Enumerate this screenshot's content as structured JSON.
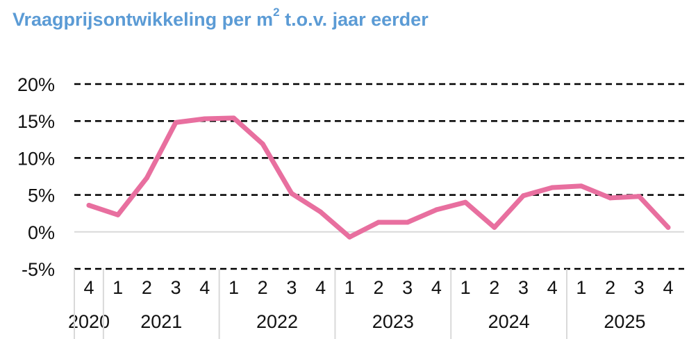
{
  "title": {
    "main": "Vraagprijsontwikkeling per m",
    "superscript": "2",
    "suffix": " t.o.v. jaar eerder"
  },
  "colors": {
    "title": "#5b9bd5",
    "line": "#e86f9f",
    "grid": "#000000",
    "zero_line": "#d9d9d9",
    "axis_divider": "#d9d9d9"
  },
  "chart_data": {
    "type": "line",
    "title": "Vraagprijsontwikkeling per m² t.o.v. jaar eerder",
    "xlabel": "",
    "ylabel": "",
    "ylim": [
      -5,
      20
    ],
    "yticks": [
      -5,
      0,
      5,
      10,
      15,
      20
    ],
    "ytick_labels": [
      "-5%",
      "0%",
      "5%",
      "10%",
      "15%",
      "20%"
    ],
    "grid": "dashed horizontal",
    "legend": "none",
    "categories": [
      "2020 Q4",
      "2021 Q1",
      "2021 Q2",
      "2021 Q3",
      "2021 Q4",
      "2022 Q1",
      "2022 Q2",
      "2022 Q3",
      "2022 Q4",
      "2023 Q1",
      "2023 Q2",
      "2023 Q3",
      "2023 Q4",
      "2024 Q1",
      "2024 Q2",
      "2024 Q3",
      "2024 Q4",
      "2025 Q1",
      "2025 Q2",
      "2025 Q3",
      "2025 Q4"
    ],
    "quarter_labels": [
      "4",
      "1",
      "2",
      "3",
      "4",
      "1",
      "2",
      "3",
      "4",
      "1",
      "2",
      "3",
      "4",
      "1",
      "2",
      "3",
      "4",
      "1",
      "2",
      "3",
      "4"
    ],
    "year_groups": [
      {
        "label": "2020",
        "count": 1
      },
      {
        "label": "2021",
        "count": 4
      },
      {
        "label": "2022",
        "count": 4
      },
      {
        "label": "2023",
        "count": 4
      },
      {
        "label": "2024",
        "count": 4
      },
      {
        "label": "2025",
        "count": 4
      }
    ],
    "series": [
      {
        "values": [
          3.6,
          2.3,
          7.3,
          14.8,
          15.3,
          15.4,
          11.9,
          5.2,
          2.7,
          -0.7,
          1.3,
          1.3,
          3.0,
          4.0,
          0.6,
          4.9,
          6.0,
          6.2,
          4.6,
          4.8,
          0.6
        ]
      }
    ]
  }
}
